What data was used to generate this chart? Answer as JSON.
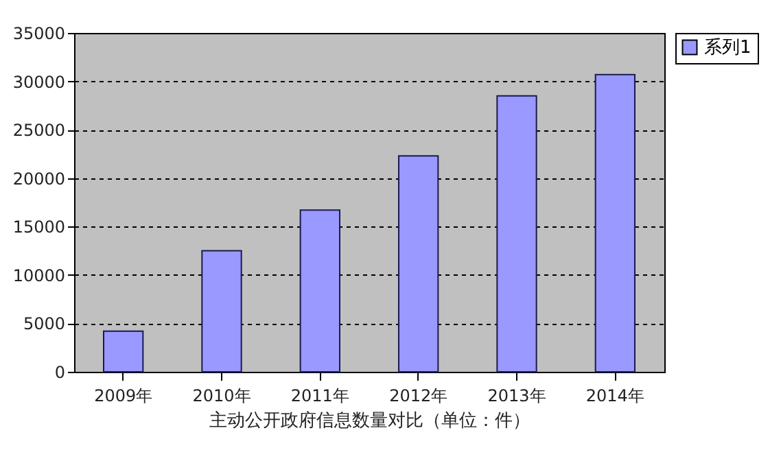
{
  "chart_data": {
    "type": "bar",
    "xlabel": "主动公开政府信息数量对比（单位：件）",
    "categories": [
      "2009年",
      "2010年",
      "2011年",
      "2012年",
      "2013年",
      "2014年"
    ],
    "series": [
      {
        "name": "系列1",
        "color": "#9999ff",
        "values": [
          4200,
          12500,
          16700,
          22300,
          28500,
          30700
        ]
      }
    ],
    "ylim": [
      0,
      35000
    ],
    "yticks": [
      0,
      5000,
      10000,
      15000,
      20000,
      25000,
      30000,
      35000
    ],
    "grid": "y",
    "legend": "right"
  }
}
